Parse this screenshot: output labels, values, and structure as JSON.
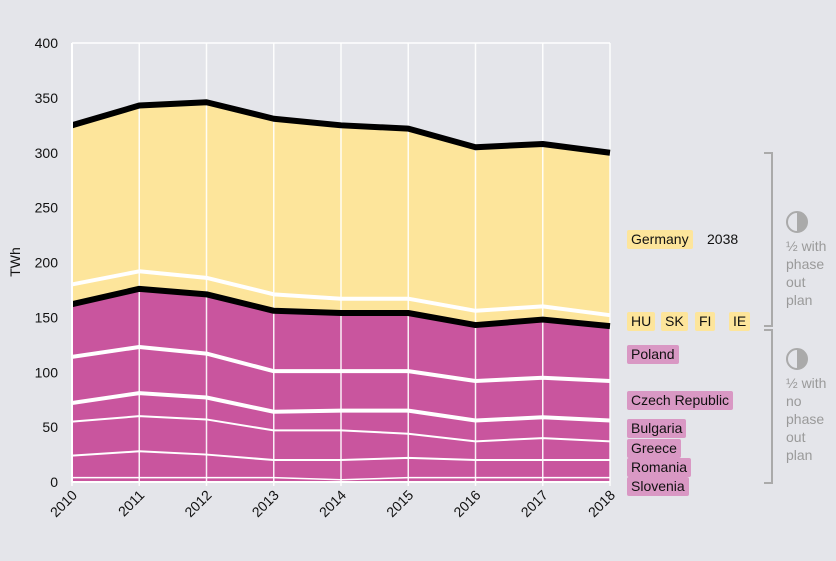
{
  "chart_data": {
    "type": "area",
    "stacked": true,
    "ylabel": "TWh",
    "xlabel": "",
    "ylim": [
      0,
      400
    ],
    "yticks": [
      0,
      50,
      100,
      150,
      200,
      250,
      300,
      350,
      400
    ],
    "categories": [
      "2010",
      "2011",
      "2012",
      "2013",
      "2014",
      "2015",
      "2016",
      "2017",
      "2018"
    ],
    "series": [
      {
        "name": "Slovenia",
        "group": "no_plan",
        "values": [
          4,
          4,
          4,
          4,
          2,
          4,
          4,
          4,
          4
        ]
      },
      {
        "name": "Romania",
        "group": "no_plan",
        "values": [
          20,
          24,
          21,
          16,
          18,
          18,
          16,
          16,
          16
        ]
      },
      {
        "name": "Greece",
        "group": "no_plan",
        "values": [
          31,
          32,
          32,
          27,
          27,
          22,
          17,
          20,
          17
        ]
      },
      {
        "name": "Bulgaria",
        "group": "no_plan",
        "values": [
          17,
          21,
          20,
          17,
          18,
          21,
          19,
          19,
          19
        ]
      },
      {
        "name": "Czech Republic",
        "group": "no_plan",
        "values": [
          42,
          42,
          40,
          37,
          36,
          36,
          36,
          36,
          36
        ]
      },
      {
        "name": "Poland",
        "group": "no_plan",
        "values": [
          48,
          53,
          54,
          55,
          53,
          53,
          51,
          53,
          50
        ]
      },
      {
        "name": "HU SK FI IE",
        "group": "plan",
        "values": [
          18,
          16,
          15,
          15,
          13,
          13,
          13,
          12,
          10
        ]
      },
      {
        "name": "Germany",
        "group": "plan",
        "values": [
          145,
          151,
          160,
          160,
          158,
          155,
          149,
          148,
          148
        ]
      }
    ],
    "colors": {
      "plan": "#fde59b",
      "no_plan": "#c9559e",
      "background": "#e4e5ea"
    },
    "labels": {
      "germany": "Germany",
      "germany_year": "2038",
      "hu": "HU",
      "sk": "SK",
      "fi": "FI",
      "ie": "IE",
      "poland": "Poland",
      "czech": "Czech Republic",
      "bulgaria": "Bulgaria",
      "greece": "Greece",
      "romania": "Romania",
      "slovenia": "Slovenia"
    },
    "annotations": {
      "with_plan": [
        "½ with",
        "phase",
        "out",
        "plan"
      ],
      "no_plan": [
        "½ with",
        "no",
        "phase",
        "out",
        "plan"
      ]
    }
  }
}
